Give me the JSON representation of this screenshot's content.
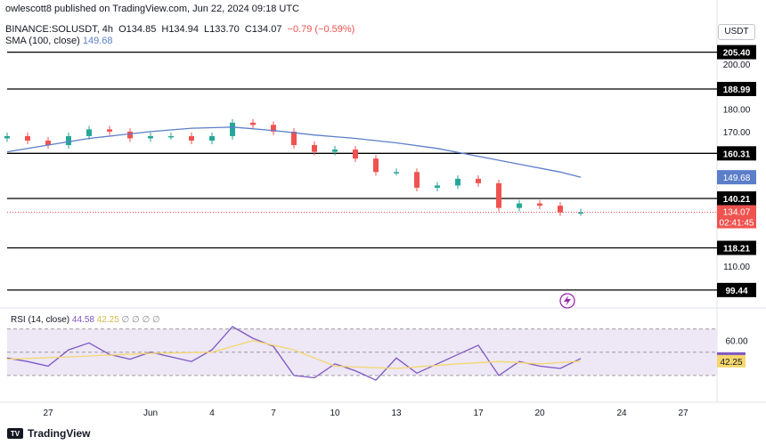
{
  "header": {
    "publisher": "owlescott8 published on TradingView.com, Jun 22, 2024 09:18 UTC",
    "symbol": "BINANCE:SOLUSDT, 4h",
    "open": "O134.85",
    "high": "H134.94",
    "low": "L133.70",
    "close": "C134.07",
    "change": "−0.79 (−0.59%)",
    "sma_label": "SMA (100, close)",
    "sma_value": "149.68",
    "currency": "USDT"
  },
  "rsi_legend": {
    "label": "RSI (14, close)",
    "value": "44.58",
    "ma_value": "42.25",
    "extra": "∅ ∅ ∅ ∅"
  },
  "footer": {
    "brand": "TradingView"
  },
  "colors": {
    "up": "#26a69a",
    "down": "#ef5350",
    "sma": "#5b7ec9",
    "rsi": "#7e57c2",
    "rsi_ma": "#f5d76e",
    "rsi_band": "#ede7f6",
    "last_price_bg": "#ef5350",
    "level_line": "#000000"
  },
  "chart_data": [
    {
      "type": "line",
      "title": "BINANCE:SOLUSDT, 4h",
      "x_ticks": [
        "27",
        "Jun",
        "4",
        "7",
        "10",
        "13",
        "17",
        "20",
        "24",
        "27"
      ],
      "y_ticks": [
        110.0,
        170.0,
        180.0,
        200.0
      ],
      "y_range": [
        97,
        210
      ],
      "horizontal_levels": [
        205.4,
        188.99,
        160.31,
        140.21,
        118.21,
        99.44
      ],
      "last_price": 134.07,
      "countdown": "02:41:45",
      "series": [
        {
          "name": "SMA (100, close)",
          "color": "#5b7ec9",
          "x": [
            "May 25",
            "May 27",
            "May 29",
            "Jun 1",
            "Jun 3",
            "Jun 5",
            "Jun 7",
            "Jun 9",
            "Jun 11",
            "Jun 13",
            "Jun 15",
            "Jun 17",
            "Jun 19",
            "Jun 21",
            "Jun 22"
          ],
          "y": [
            161,
            164,
            167,
            170,
            171.5,
            172,
            170.5,
            168.5,
            167,
            165,
            162.5,
            159,
            155.5,
            152,
            149.68
          ]
        },
        {
          "name": "Price (close)",
          "color": "#26a69a",
          "x": [
            "May 25",
            "May 26",
            "May 27",
            "May 28",
            "May 29",
            "May 30",
            "May 31",
            "Jun 1",
            "Jun 2",
            "Jun 3",
            "Jun 4",
            "Jun 5",
            "Jun 6",
            "Jun 7",
            "Jun 8",
            "Jun 9",
            "Jun 10",
            "Jun 11",
            "Jun 12",
            "Jun 13",
            "Jun 14",
            "Jun 15",
            "Jun 16",
            "Jun 17",
            "Jun 18",
            "Jun 19",
            "Jun 20",
            "Jun 21",
            "Jun 22"
          ],
          "y": [
            168,
            166,
            164,
            168,
            171,
            170,
            167,
            168,
            168,
            166,
            168,
            174,
            173,
            170,
            164,
            161,
            162,
            158,
            152,
            152,
            145,
            146,
            149,
            147,
            136,
            138,
            137,
            134,
            134.07
          ]
        }
      ]
    },
    {
      "type": "line",
      "title": "RSI (14, close)",
      "y_ticks": [
        60.0
      ],
      "y_range": [
        10,
        85
      ],
      "bands": [
        30,
        50,
        70
      ],
      "last_rsi": 44.58,
      "last_rsi_ma": 42.25,
      "series": [
        {
          "name": "RSI",
          "color": "#7e57c2",
          "x": [
            "May 25",
            "May 26",
            "May 27",
            "May 28",
            "May 29",
            "May 30",
            "May 31",
            "Jun 1",
            "Jun 2",
            "Jun 3",
            "Jun 4",
            "Jun 5",
            "Jun 6",
            "Jun 7",
            "Jun 8",
            "Jun 9",
            "Jun 10",
            "Jun 11",
            "Jun 12",
            "Jun 13",
            "Jun 14",
            "Jun 15",
            "Jun 16",
            "Jun 17",
            "Jun 18",
            "Jun 19",
            "Jun 20",
            "Jun 21",
            "Jun 22"
          ],
          "y": [
            45,
            42,
            38,
            52,
            58,
            48,
            44,
            50,
            46,
            42,
            52,
            72,
            62,
            55,
            30,
            28,
            40,
            34,
            26,
            45,
            32,
            40,
            48,
            56,
            30,
            42,
            38,
            36,
            44.58
          ]
        },
        {
          "name": "RSI-based MA",
          "color": "#f5d76e",
          "x": [
            "May 25",
            "May 28",
            "Jun 1",
            "Jun 4",
            "Jun 6",
            "Jun 8",
            "Jun 10",
            "Jun 13",
            "Jun 16",
            "Jun 18",
            "Jun 20",
            "Jun 22"
          ],
          "y": [
            44,
            46,
            49,
            50,
            60,
            52,
            38,
            36,
            40,
            42,
            40,
            42.25
          ]
        }
      ]
    }
  ]
}
